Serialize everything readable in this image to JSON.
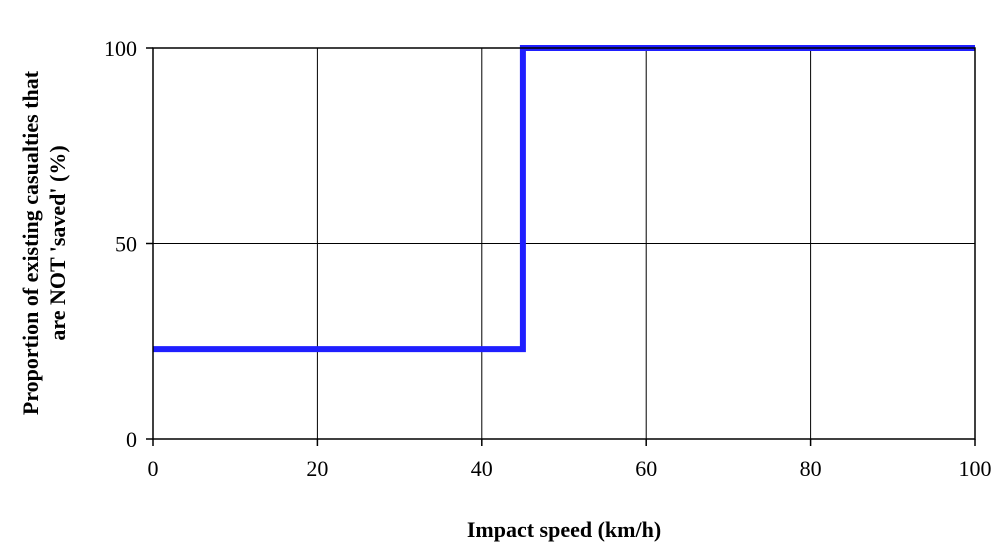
{
  "chart_data": {
    "type": "line",
    "title": "",
    "xlabel": "Impact speed (km/h)",
    "ylabel_lines": [
      "Proportion of existing casualties that",
      "are NOT 'saved' (%)"
    ],
    "xlim": [
      0,
      100
    ],
    "ylim": [
      0,
      100
    ],
    "xticks": [
      0,
      20,
      40,
      60,
      80,
      100
    ],
    "yticks": [
      0,
      50,
      100
    ],
    "grid": true,
    "legend": "none",
    "series": [
      {
        "color": "#1f1fff",
        "x": [
          0,
          45,
          45,
          100
        ],
        "y": [
          23,
          23,
          100,
          100
        ]
      }
    ]
  }
}
